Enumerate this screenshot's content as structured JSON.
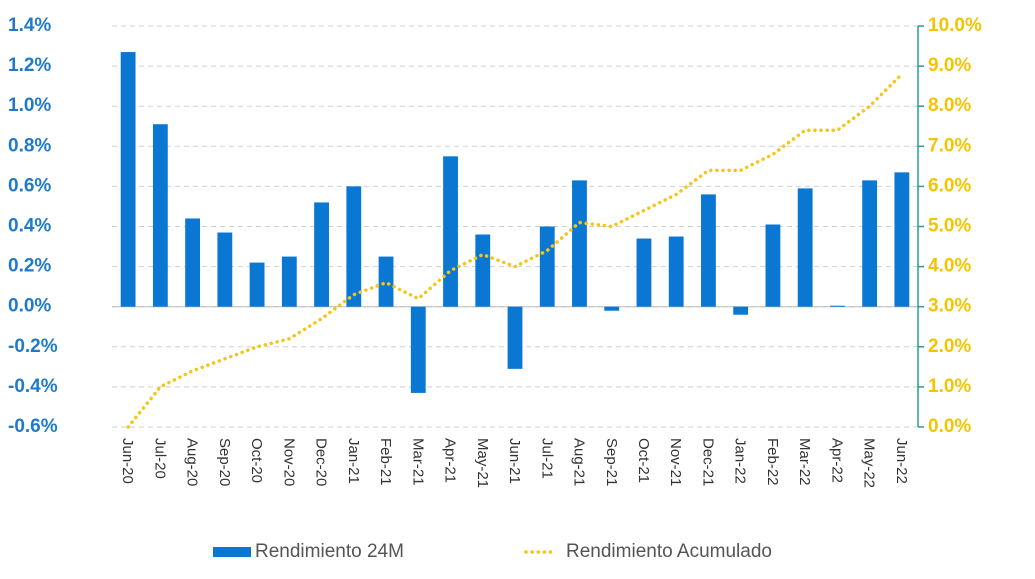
{
  "chart_data": {
    "type": "bar-line",
    "categories": [
      "Jun-20",
      "Jul-20",
      "Aug-20",
      "Sep-20",
      "Oct-20",
      "Nov-20",
      "Dec-20",
      "Jan-21",
      "Feb-21",
      "Mar-21",
      "Apr-21",
      "May-21",
      "Jun-21",
      "Jul-21",
      "Aug-21",
      "Sep-21",
      "Oct-21",
      "Nov-21",
      "Dec-21",
      "Jan-22",
      "Feb-22",
      "Mar-22",
      "Apr-22",
      "May-22",
      "Jun-22"
    ],
    "series": [
      {
        "name": "Rendimiento 24M",
        "color": "#0a78d2",
        "type": "bar",
        "values": [
          1.27,
          0.91,
          0.44,
          0.37,
          0.22,
          0.25,
          0.52,
          0.6,
          0.25,
          -0.43,
          0.75,
          0.36,
          -0.31,
          0.4,
          0.63,
          -0.02,
          0.34,
          0.35,
          0.56,
          -0.04,
          0.41,
          0.59,
          0.005,
          0.63,
          0.67
        ]
      },
      {
        "name": "Rendimiento Acumulado",
        "color": "#f5c518",
        "type": "line",
        "axis": "y2",
        "values": [
          0.0,
          1.0,
          1.4,
          1.7,
          2.0,
          2.2,
          2.7,
          3.3,
          3.6,
          3.2,
          3.9,
          4.3,
          4.0,
          4.4,
          5.1,
          5.0,
          5.4,
          5.8,
          6.4,
          6.4,
          6.8,
          7.4,
          7.4,
          8.0,
          8.8
        ]
      }
    ],
    "ylim": [
      -0.6,
      1.4
    ],
    "yticks": [
      {
        "value": -0.6,
        "label": "-0.6%"
      },
      {
        "value": -0.4,
        "label": "-0.4%"
      },
      {
        "value": -0.2,
        "label": "-0.2%"
      },
      {
        "value": 0,
        "label": "0.0%"
      },
      {
        "value": 0.2,
        "label": "0.2%"
      },
      {
        "value": 0.4,
        "label": "0.4%"
      },
      {
        "value": 0.6,
        "label": "0.6%"
      },
      {
        "value": 0.8,
        "label": "0.8%"
      },
      {
        "value": 1.0,
        "label": "1.0%"
      },
      {
        "value": 1.2,
        "label": "1.2%"
      },
      {
        "value": 1.4,
        "label": "1.4%"
      }
    ],
    "y2lim": [
      0,
      10
    ],
    "y2ticks": [
      {
        "value": 0,
        "label": "0.0%"
      },
      {
        "value": 1,
        "label": "1.0%"
      },
      {
        "value": 2,
        "label": "2.0%"
      },
      {
        "value": 3,
        "label": "3.0%"
      },
      {
        "value": 4,
        "label": "4.0%"
      },
      {
        "value": 5,
        "label": "5.0%"
      },
      {
        "value": 6,
        "label": "6.0%"
      },
      {
        "value": 7,
        "label": "7.0%"
      },
      {
        "value": 8,
        "label": "8.0%"
      },
      {
        "value": 9,
        "label": "9.0%"
      },
      {
        "value": 10,
        "label": "10.0%"
      }
    ],
    "grid": true,
    "legend": "bottom"
  }
}
